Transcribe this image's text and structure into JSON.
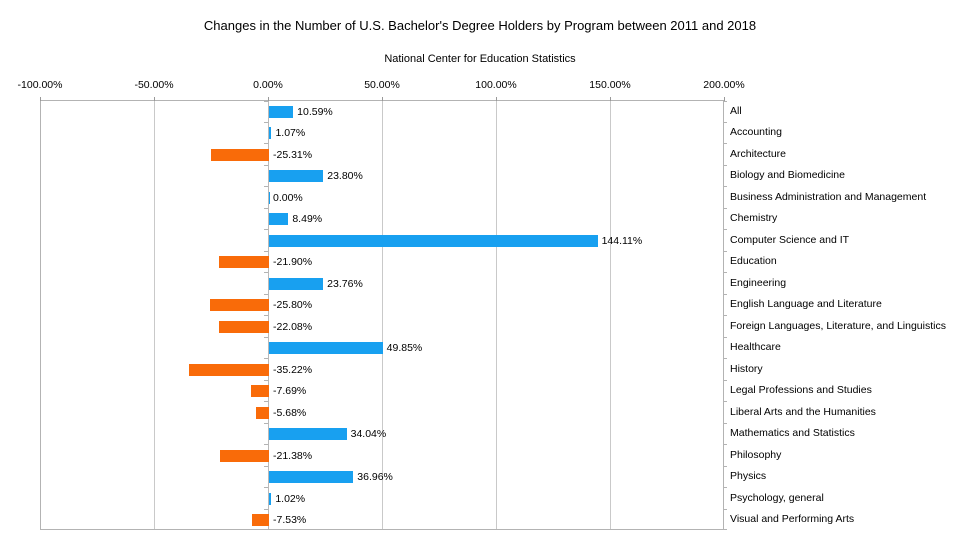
{
  "chart_data": {
    "type": "bar",
    "orientation": "horizontal",
    "title": "Changes in the Number of U.S. Bachelor's Degree Holders by Program between 2011 and 2018",
    "subtitle": "National Center for Education Statistics",
    "categories": [
      "All",
      "Accounting",
      "Architecture",
      "Biology and Biomedicine",
      "Business Administration and Management",
      "Chemistry",
      "Computer Science and IT",
      "Education",
      "Engineering",
      "English Language and Literature",
      "Foreign Languages, Literature, and Linguistics",
      "Healthcare",
      "History",
      "Legal Professions and Studies",
      "Liberal Arts and the Humanities",
      "Mathematics and Statistics",
      "Philosophy",
      "Physics",
      "Psychology, general",
      "Visual and Performing Arts"
    ],
    "values": [
      10.59,
      1.07,
      -25.31,
      23.8,
      0.0,
      8.49,
      144.11,
      -21.9,
      23.76,
      -25.8,
      -22.08,
      49.85,
      -35.22,
      -7.69,
      -5.68,
      34.04,
      -21.38,
      36.96,
      1.02,
      -7.53
    ],
    "value_labels": [
      "10.59%",
      "1.07%",
      "-25.31%",
      "23.80%",
      "0.00%",
      "8.49%",
      "144.11%",
      "-21.90%",
      "23.76%",
      "-25.80%",
      "-22.08%",
      "49.85%",
      "-35.22%",
      "-7.69%",
      "-5.68%",
      "34.04%",
      "-21.38%",
      "36.96%",
      "1.02%",
      "-7.53%"
    ],
    "x_tick_labels": [
      "-100.00%",
      "-50.00%",
      "0.00%",
      "50.00%",
      "100.00%",
      "150.00%",
      "200.00%"
    ],
    "x_tick_values": [
      -100,
      -50,
      0,
      50,
      100,
      150,
      200
    ],
    "xlim": [
      -100,
      200
    ],
    "grid": "vertical-gridlines-on",
    "legend": "none",
    "positive_color": "#18A0F0",
    "negative_color": "#F96B09"
  }
}
